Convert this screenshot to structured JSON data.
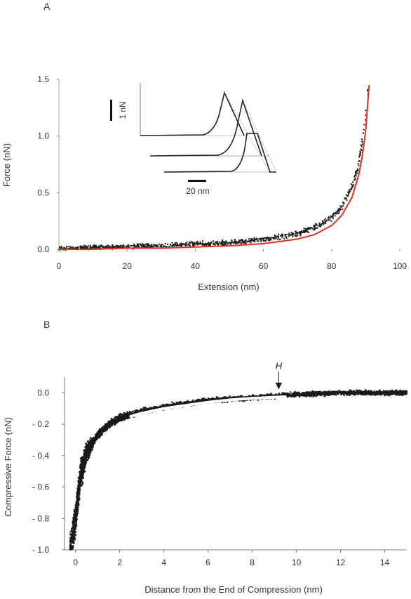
{
  "chart_data": [
    {
      "panel_label": "A",
      "type": "scatter",
      "xlabel": "Extension (nm)",
      "ylabel": "Force (nN)",
      "xlim": [
        0,
        100
      ],
      "ylim": [
        0,
        1.5
      ],
      "x_ticks": [
        0,
        20,
        40,
        60,
        80,
        100
      ],
      "y_ticks": [
        0.0,
        0.5,
        1.0,
        1.5
      ],
      "x_tick_labels": [
        "0",
        "20",
        "40",
        "60",
        "80",
        "100"
      ],
      "y_tick_labels": [
        "0.0",
        "0.5",
        "1.0",
        "1.5"
      ],
      "series": [
        {
          "kind": "scatter",
          "color": "#231f1f",
          "x": [
            0,
            5,
            10,
            15,
            20,
            25,
            30,
            35,
            40,
            45,
            50,
            55,
            60,
            65,
            70,
            75,
            80,
            83,
            86,
            88,
            89,
            90,
            91
          ],
          "y": [
            0.01,
            0.01,
            0.02,
            0.02,
            0.02,
            0.03,
            0.03,
            0.04,
            0.05,
            0.05,
            0.06,
            0.07,
            0.09,
            0.11,
            0.14,
            0.19,
            0.28,
            0.38,
            0.55,
            0.75,
            0.95,
            1.2,
            1.5
          ]
        },
        {
          "kind": "fit-line",
          "color": "#e0301e",
          "x": [
            0,
            10,
            20,
            30,
            40,
            50,
            60,
            70,
            75,
            80,
            83,
            86,
            88,
            89,
            90,
            91
          ],
          "y": [
            0.0,
            0.0,
            0.01,
            0.01,
            0.02,
            0.03,
            0.05,
            0.09,
            0.13,
            0.21,
            0.3,
            0.46,
            0.66,
            0.82,
            1.05,
            1.45
          ]
        }
      ],
      "inset": {
        "scale_bar_y_label": "1 nN",
        "scale_bar_x_label": "20 nm",
        "curve_count": 3
      }
    },
    {
      "panel_label": "B",
      "type": "scatter",
      "xlabel": "Distance from the End of Compression (nm)",
      "ylabel": "Compressive Force (nN)",
      "xlim": [
        -0.5,
        15
      ],
      "ylim": [
        -1.0,
        0.1
      ],
      "x_ticks": [
        0,
        2,
        4,
        6,
        8,
        10,
        12,
        14
      ],
      "y_ticks": [
        0.0,
        -0.2,
        -0.4,
        -0.6,
        -0.8,
        -1.0
      ],
      "x_tick_labels": [
        "0",
        "2",
        "4",
        "6",
        "8",
        "10",
        "12",
        "14"
      ],
      "y_tick_labels": [
        "0.0",
        "- 0.2",
        "- 0.4",
        "- 0.6",
        "- 0.8",
        "- 1.0"
      ],
      "series": [
        {
          "kind": "dense-scatter",
          "color": "#1a1a1a",
          "x": [
            -0.2,
            0.0,
            0.2,
            0.5,
            1.0,
            1.5,
            2.0,
            3.0,
            4.0,
            5.0,
            6.0,
            7.0,
            8.0,
            9.0,
            10.0,
            12.0,
            14.0,
            15.0
          ],
          "y": [
            -1.0,
            -0.8,
            -0.55,
            -0.38,
            -0.27,
            -0.2,
            -0.16,
            -0.12,
            -0.09,
            -0.07,
            -0.05,
            -0.04,
            -0.03,
            -0.02,
            -0.01,
            0.0,
            0.0,
            0.0
          ]
        },
        {
          "kind": "fit-line",
          "color": "#ffffff",
          "x": [
            2.5,
            3,
            4,
            5,
            6,
            7,
            8,
            9,
            9.5
          ],
          "y": [
            -0.15,
            -0.13,
            -0.1,
            -0.08,
            -0.06,
            -0.045,
            -0.035,
            -0.028,
            -0.025
          ]
        }
      ],
      "annotation": {
        "text": "H",
        "x": 9.2,
        "y": 0.0
      }
    }
  ]
}
